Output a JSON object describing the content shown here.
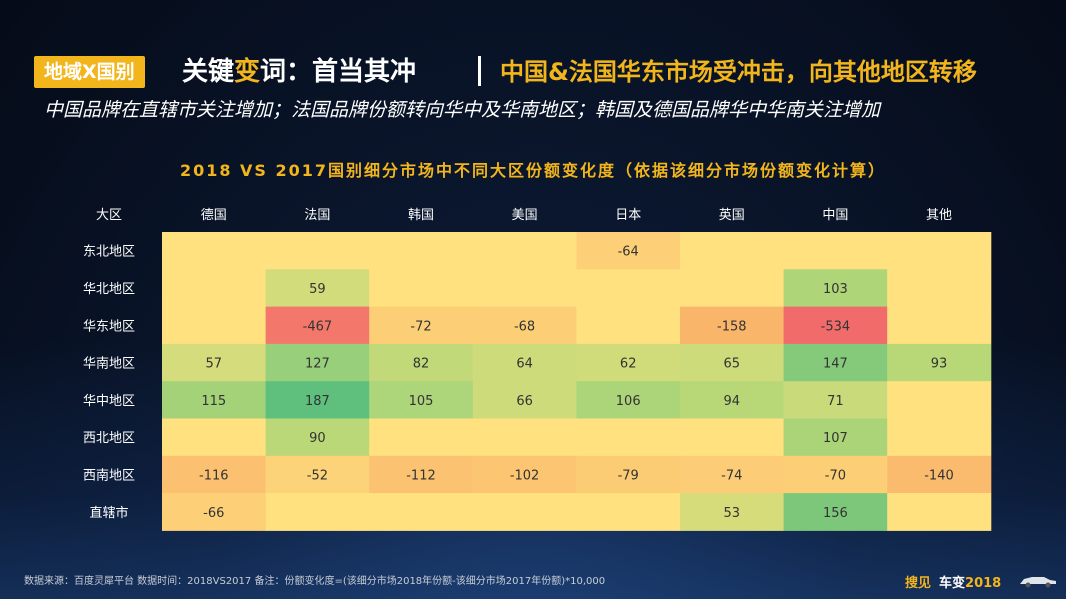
{
  "header": {
    "tag": "地域X国别",
    "title_prefix": "关键",
    "title_highlight": "变",
    "title_suffix": "词：首当其冲",
    "title_right": "中国&法国华东市场受冲击，向其他地区转移",
    "subtitle": "中国品牌在直辖市关注增加；法国品牌份额转向华中及华南地区；韩国及德国品牌华中华南关注增加"
  },
  "chart_data": {
    "type": "heatmap",
    "title": "2018 VS 2017国别细分市场中不同大区份额变化度（依据该细分市场份额变化计算）",
    "corner_label": "大区",
    "columns": [
      "德国",
      "法国",
      "韩国",
      "美国",
      "日本",
      "英国",
      "中国",
      "其他"
    ],
    "rows": [
      "东北地区",
      "华北地区",
      "华东地区",
      "华南地区",
      "华中地区",
      "西北地区",
      "西南地区",
      "直辖市"
    ],
    "values": [
      [
        null,
        null,
        null,
        null,
        -64,
        null,
        null,
        null
      ],
      [
        null,
        59,
        null,
        null,
        null,
        null,
        103,
        null
      ],
      [
        null,
        -467,
        -72,
        -68,
        null,
        -158,
        -534,
        null
      ],
      [
        57,
        127,
        82,
        64,
        62,
        65,
        147,
        93
      ],
      [
        115,
        187,
        105,
        66,
        106,
        94,
        71,
        null
      ],
      [
        null,
        90,
        null,
        null,
        null,
        null,
        107,
        null
      ],
      [
        -116,
        -52,
        -112,
        -102,
        -79,
        -74,
        -70,
        -140
      ],
      [
        -66,
        null,
        null,
        null,
        null,
        53,
        156,
        null
      ]
    ],
    "colors": {
      "negative_strong": "#f26b6b",
      "negative": "#f9b56b",
      "neutral": "#ffe27f",
      "positive": "#b8d878",
      "positive_strong": "#5fbf7d"
    }
  },
  "footer": {
    "note": "数据来源：百度灵犀平台    数据时间：2018VS2017   备注：份额变化度=(该细分市场2018年份额-该细分市场2017年份额)*10,000",
    "brand_1": "搜见",
    "brand_2": "车变",
    "brand_3": "2018"
  }
}
